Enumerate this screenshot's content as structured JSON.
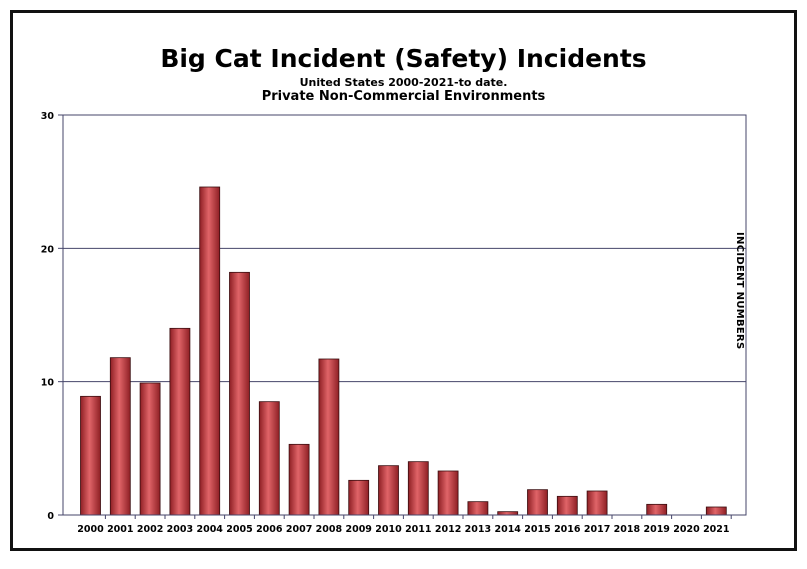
{
  "chart_data": {
    "type": "bar",
    "title": "Big Cat Incident (Safety) Incidents",
    "subtitle": "United States 2000-2021-to date.",
    "subtitle2": "Private Non-Commercial Environments",
    "xlabel": "",
    "ylabel": "INCIDENT NUMBERS",
    "ylim": [
      0,
      30
    ],
    "yticks": [
      0,
      10,
      20,
      30
    ],
    "grid": true,
    "bar_color": "#c0353a",
    "categories": [
      "2000",
      "2001",
      "2002",
      "2003",
      "2004",
      "2005",
      "2006",
      "2007",
      "2008",
      "2009",
      "2010",
      "2011",
      "2012",
      "2013",
      "2014",
      "2015",
      "2016",
      "2017",
      "2018",
      "2019",
      "2020",
      "2021"
    ],
    "values": [
      8.9,
      11.8,
      9.9,
      14.0,
      24.6,
      18.2,
      8.5,
      5.3,
      11.7,
      2.6,
      3.7,
      4.0,
      3.3,
      1.0,
      0.25,
      1.9,
      1.4,
      1.8,
      0,
      0.8,
      0,
      0.6
    ]
  }
}
